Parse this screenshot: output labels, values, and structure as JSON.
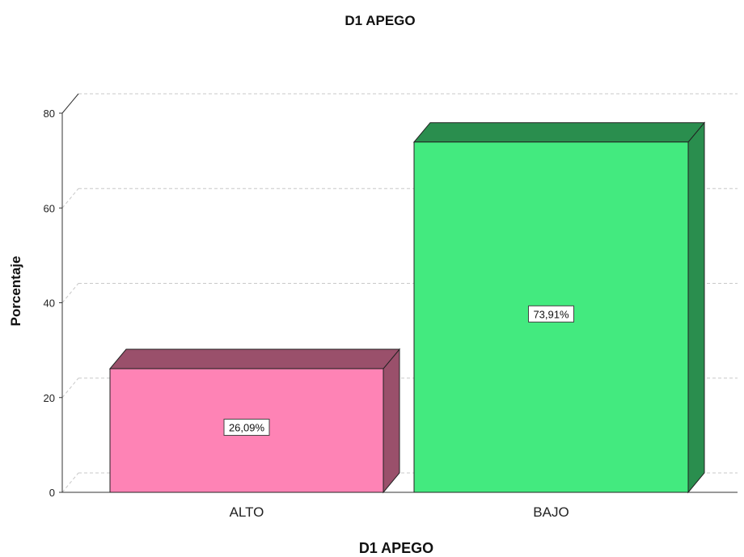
{
  "chart_data": {
    "type": "bar",
    "title": "D1 APEGO",
    "xlabel": "D1 APEGO",
    "ylabel": "Porcentaje",
    "categories": [
      "ALTO",
      "BAJO"
    ],
    "values": [
      26.09,
      73.91
    ],
    "value_labels": [
      "26,09%",
      "73,91%"
    ],
    "yticks": [
      0,
      20,
      40,
      60,
      80
    ],
    "ylim": [
      0,
      84
    ],
    "grid": true,
    "style": "3d",
    "colors": {
      "ALTO": {
        "front": "#fe83b5",
        "side": "#9a506b"
      },
      "BAJO": {
        "front": "#43ea7f",
        "side": "#2a8e4e"
      }
    }
  }
}
